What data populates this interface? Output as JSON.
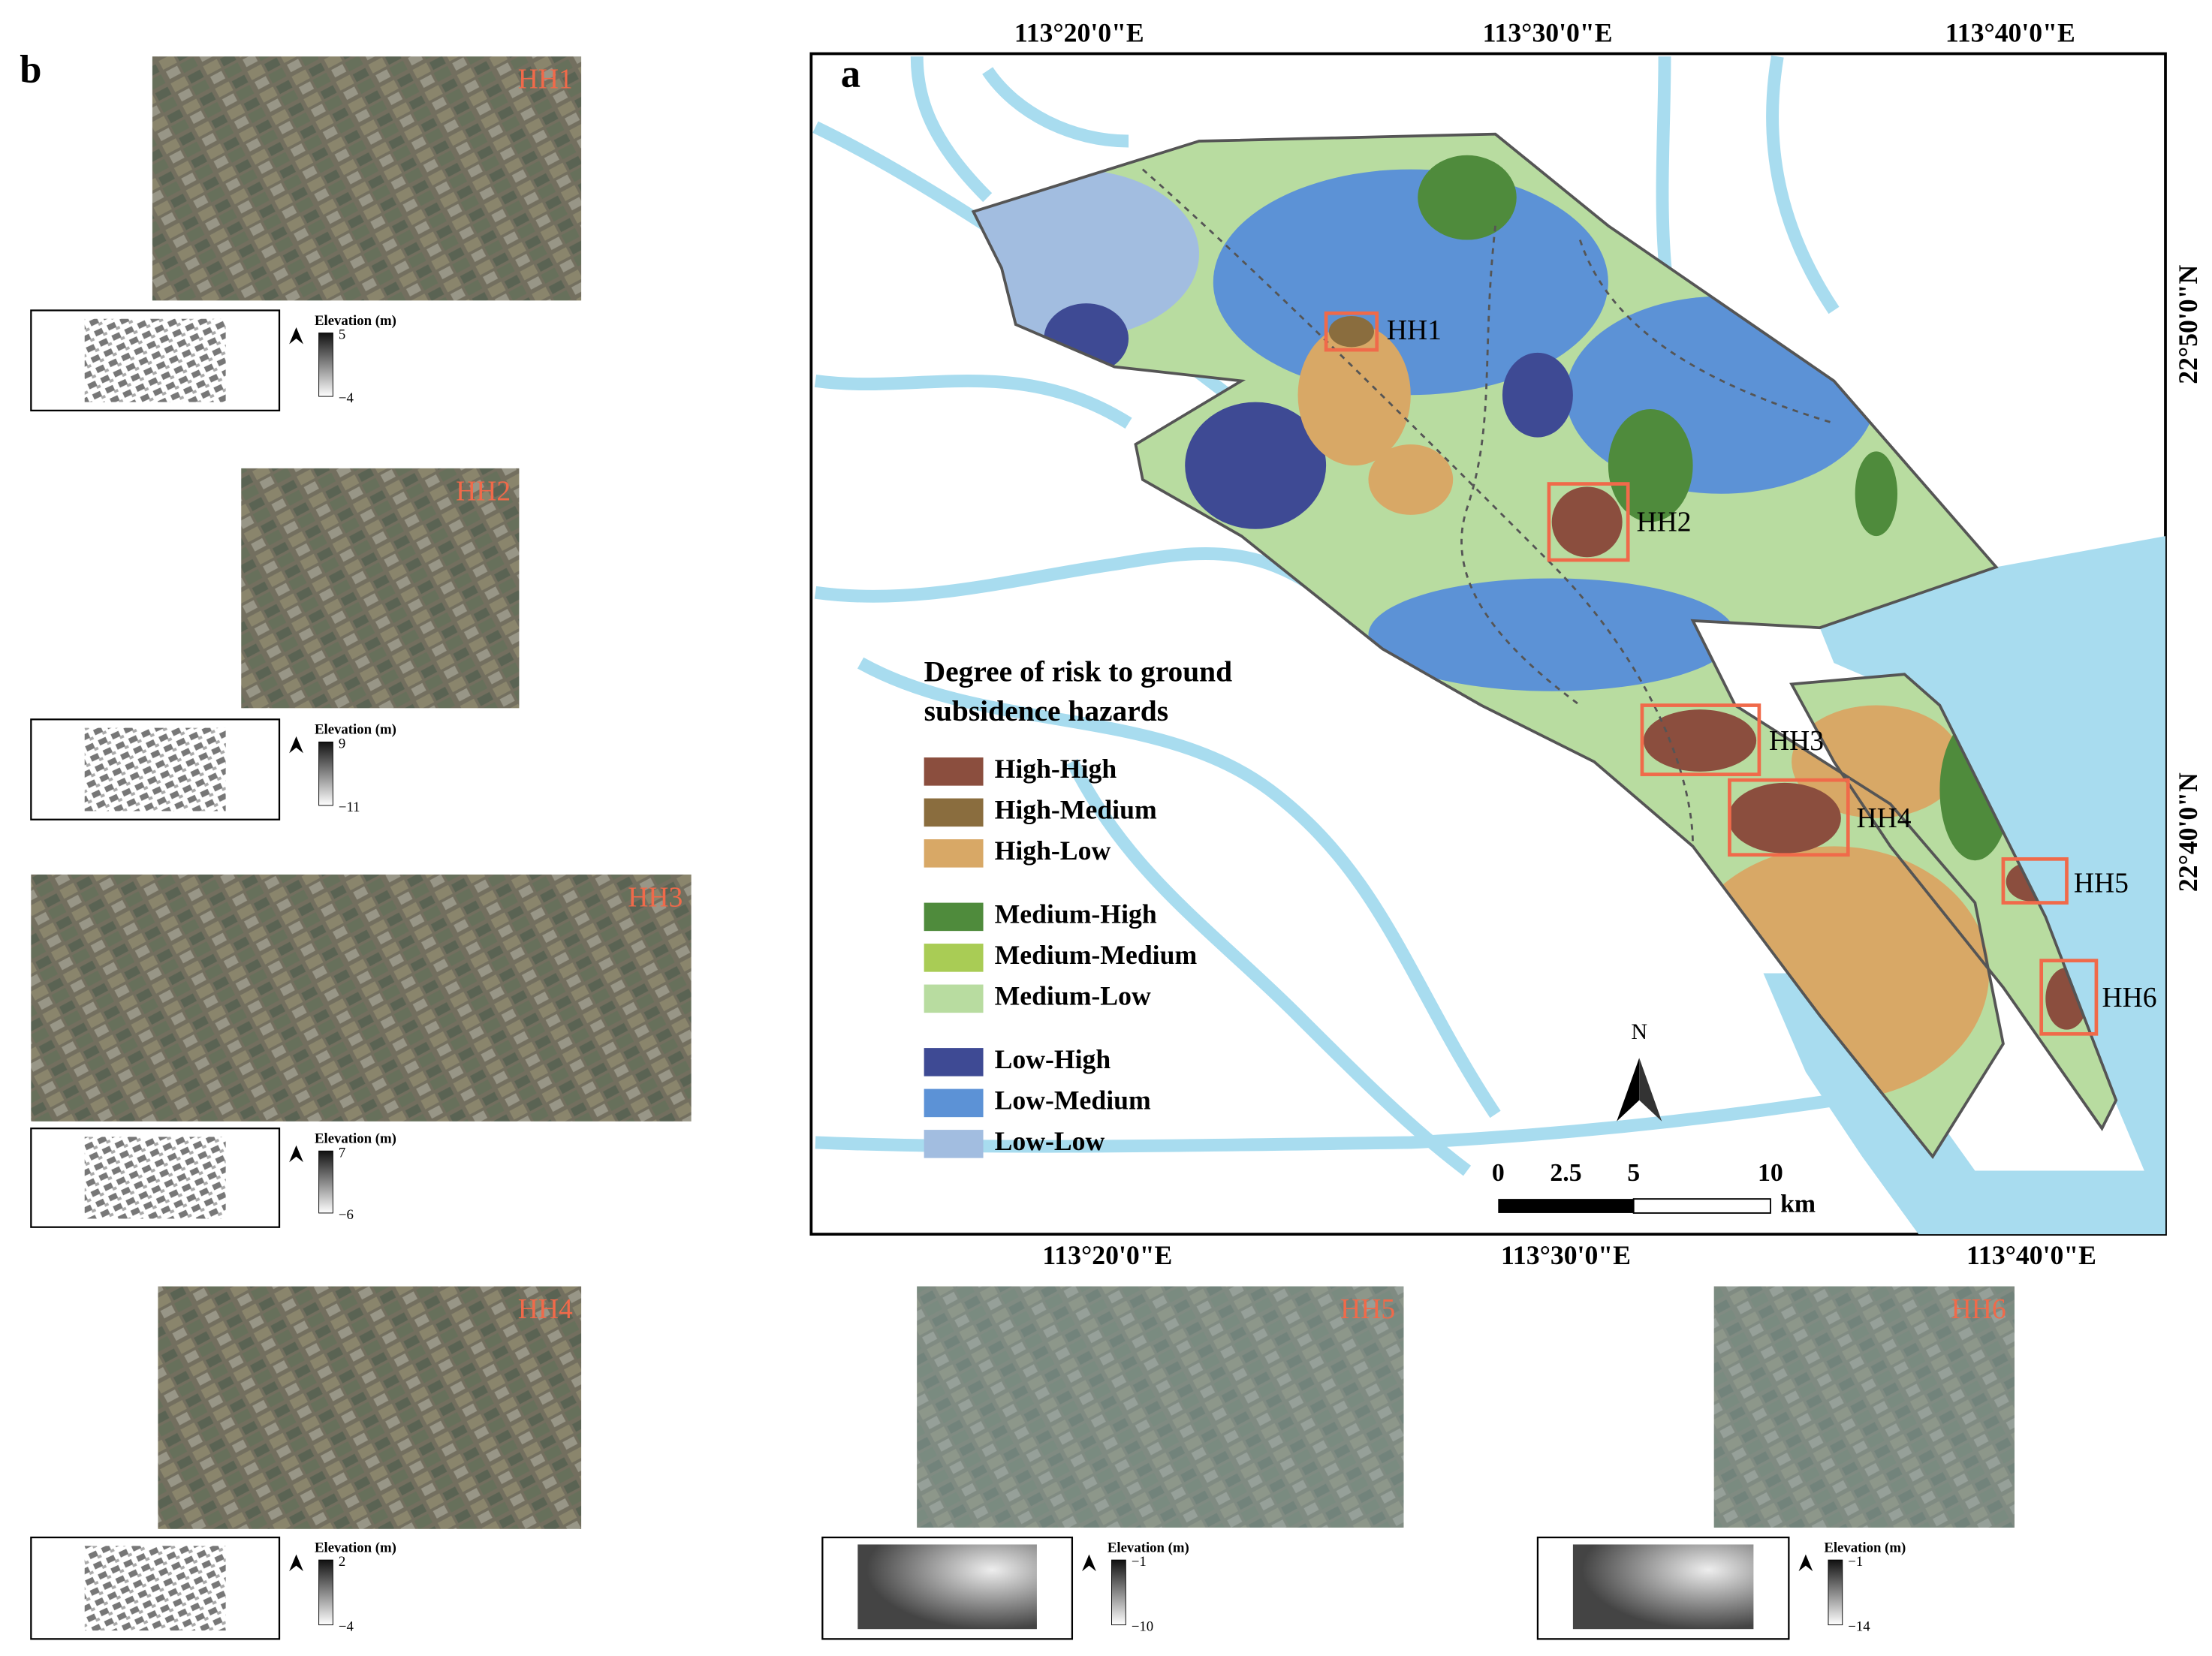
{
  "panel_b_label": "b",
  "panel_a_label": "a",
  "legend": {
    "title_lines": [
      "Degree of risk to ground",
      "subsidence hazards"
    ],
    "items": [
      {
        "label": "High-High",
        "color": "#8b4e3e"
      },
      {
        "label": "High-Medium",
        "color": "#8a6d3e"
      },
      {
        "label": "High-Low",
        "color": "#d8a866"
      },
      {
        "label": "Medium-High",
        "color": "#4f8b3c"
      },
      {
        "label": "Medium-Medium",
        "color": "#a9cc55"
      },
      {
        "label": "Medium-Low",
        "color": "#b8dca0"
      },
      {
        "label": "Low-High",
        "color": "#3e4a94"
      },
      {
        "label": "Low-Medium",
        "color": "#5c92d6"
      },
      {
        "label": "Low-Low",
        "color": "#a2bde0"
      }
    ]
  },
  "axes": {
    "top": [
      "113°20'0\"E",
      "113°30'0\"E",
      "113°40'0\"E"
    ],
    "bottom": [
      "113°20'0\"E",
      "113°30'0\"E",
      "113°40'0\"E"
    ],
    "right": [
      "22°50'0\"N",
      "22°40'0\"N"
    ]
  },
  "hotspots": [
    "HH1",
    "HH2",
    "HH3",
    "HH4",
    "HH5",
    "HH6"
  ],
  "scale_bar": {
    "ticks": [
      "0",
      "2.5",
      "5",
      "10"
    ],
    "unit": "km"
  },
  "north": "N",
  "insets": [
    {
      "name": "HH1",
      "elevation_title": "Elevation (m)",
      "max": "5",
      "min": "−4"
    },
    {
      "name": "HH2",
      "elevation_title": "Elevation (m)",
      "max": "9",
      "min": "−11"
    },
    {
      "name": "HH3",
      "elevation_title": "Elevation (m)",
      "max": "7",
      "min": "−6"
    },
    {
      "name": "HH4",
      "elevation_title": "Elevation (m)",
      "max": "2",
      "min": "−4"
    },
    {
      "name": "HH5",
      "elevation_title": "Elevation (m)",
      "max": "−1",
      "min": "−10"
    },
    {
      "name": "HH6",
      "elevation_title": "Elevation (m)",
      "max": "−1",
      "min": "−14"
    }
  ]
}
